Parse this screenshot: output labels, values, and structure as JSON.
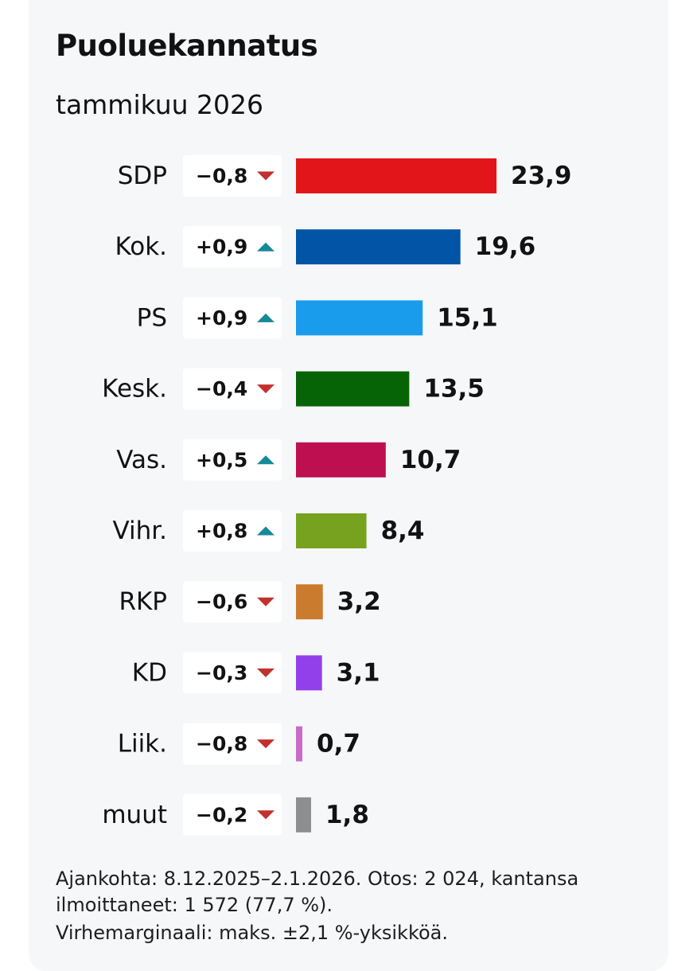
{
  "title": "Puoluekannatus",
  "subtitle": "tammikuu 2026",
  "colors": {
    "up": "#168a9a",
    "down": "#c2312c",
    "card_background": "#f6f7f9",
    "badge_background": "#ffffff"
  },
  "chart_data": {
    "type": "bar",
    "orientation": "horizontal",
    "categories": [
      "SDP",
      "Kok.",
      "PS",
      "Kesk.",
      "Vas.",
      "Vihr.",
      "RKP",
      "KD",
      "Liik.",
      "muut"
    ],
    "values": [
      23.9,
      19.6,
      15.1,
      13.5,
      10.7,
      8.4,
      3.2,
      3.1,
      0.7,
      1.8
    ],
    "value_labels": [
      "23,9",
      "19,6",
      "15,1",
      "13,5",
      "10,7",
      "8,4",
      "3,2",
      "3,1",
      "0,7",
      "1,8"
    ],
    "changes": [
      -0.8,
      0.9,
      0.9,
      -0.4,
      0.5,
      0.8,
      -0.6,
      -0.3,
      -0.8,
      -0.2
    ],
    "change_labels": [
      "−0,8",
      "+0,9",
      "+0,9",
      "−0,4",
      "+0,5",
      "+0,8",
      "−0,6",
      "−0,3",
      "−0,8",
      "−0,2"
    ],
    "change_directions": [
      "down",
      "up",
      "up",
      "down",
      "up",
      "up",
      "down",
      "down",
      "down",
      "down"
    ],
    "bar_colors": [
      "#e2151b",
      "#0254a6",
      "#189ceb",
      "#076406",
      "#be1051",
      "#76a220",
      "#cb7b2e",
      "#9240ea",
      "#c96ac6",
      "#8e8e8e"
    ],
    "xlim": [
      0,
      23.9
    ],
    "grid": false,
    "legend": "none"
  },
  "footnote": {
    "line1": "Ajankohta: 8.12.2025–2.1.2026. Otos: 2 024, kantansa ilmoittaneet: 1 572 (77,7 %).",
    "line2": "Virhemarginaali: maks. ±2,1 %-yksikköä."
  }
}
